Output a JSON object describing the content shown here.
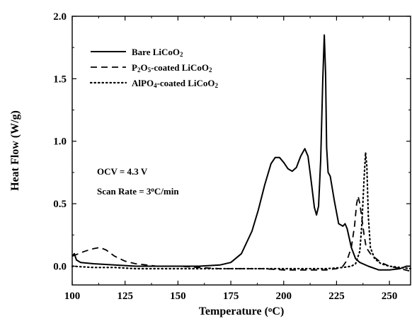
{
  "chart_data": {
    "type": "line",
    "xlabel": "Temperature (°C)",
    "xlabel_parts": {
      "pre": "Temperature (",
      "sup": "o",
      "post": "C)"
    },
    "ylabel": "Heat Flow (W/g)",
    "xlim": [
      100,
      260
    ],
    "ylim": [
      -0.15,
      2.0
    ],
    "xticks": [
      100,
      125,
      150,
      175,
      200,
      225,
      250
    ],
    "xtick_labels": [
      "100",
      "125",
      "150",
      "175",
      "200",
      "225",
      "250"
    ],
    "yticks": [
      0.0,
      0.5,
      1.0,
      1.5,
      2.0
    ],
    "ytick_labels": [
      "0.0",
      "0.5",
      "1.0",
      "1.5",
      "2.0"
    ],
    "grid": false,
    "legend_position": "top-left",
    "series": [
      {
        "name": "Bare LiCoO2",
        "label_parts": [
          {
            "t": "Bare LiCoO"
          },
          {
            "t": "2",
            "sub": true
          }
        ],
        "style": "solid",
        "color": "#000000",
        "points": [
          [
            100,
            0.08
          ],
          [
            101,
            0.1
          ],
          [
            102,
            0.05
          ],
          [
            104,
            0.03
          ],
          [
            110,
            0.02
          ],
          [
            120,
            0.01
          ],
          [
            130,
            0.0
          ],
          [
            140,
            0.0
          ],
          [
            150,
            0.0
          ],
          [
            160,
            0.0
          ],
          [
            170,
            0.01
          ],
          [
            175,
            0.03
          ],
          [
            180,
            0.1
          ],
          [
            185,
            0.28
          ],
          [
            188,
            0.45
          ],
          [
            191,
            0.65
          ],
          [
            194,
            0.82
          ],
          [
            196,
            0.87
          ],
          [
            198,
            0.87
          ],
          [
            200,
            0.83
          ],
          [
            202,
            0.78
          ],
          [
            204,
            0.76
          ],
          [
            206,
            0.79
          ],
          [
            208,
            0.88
          ],
          [
            210,
            0.94
          ],
          [
            211.5,
            0.88
          ],
          [
            213,
            0.68
          ],
          [
            214.5,
            0.47
          ],
          [
            215.5,
            0.41
          ],
          [
            216.5,
            0.48
          ],
          [
            217.5,
            0.85
          ],
          [
            218.5,
            1.5
          ],
          [
            219.2,
            1.85
          ],
          [
            219.8,
            1.55
          ],
          [
            220.3,
            0.95
          ],
          [
            221,
            0.75
          ],
          [
            222,
            0.72
          ],
          [
            224,
            0.52
          ],
          [
            226,
            0.34
          ],
          [
            228,
            0.32
          ],
          [
            229,
            0.34
          ],
          [
            230,
            0.3
          ],
          [
            232,
            0.15
          ],
          [
            234,
            0.06
          ],
          [
            236,
            0.03
          ],
          [
            240,
            0.0
          ],
          [
            245,
            -0.03
          ],
          [
            250,
            -0.03
          ],
          [
            255,
            -0.02
          ],
          [
            258,
            0.0
          ],
          [
            260,
            0.0
          ]
        ]
      },
      {
        "name": "P2O5-coated LiCoO2",
        "label_parts": [
          {
            "t": "P"
          },
          {
            "t": "2",
            "sub": true
          },
          {
            "t": "O"
          },
          {
            "t": "5",
            "sub": true
          },
          {
            "t": "-coated LiCoO"
          },
          {
            "t": "2",
            "sub": true
          }
        ],
        "style": "dashed",
        "color": "#000000",
        "points": [
          [
            100,
            0.08
          ],
          [
            103,
            0.1
          ],
          [
            106,
            0.12
          ],
          [
            110,
            0.14
          ],
          [
            113,
            0.15
          ],
          [
            116,
            0.13
          ],
          [
            120,
            0.08
          ],
          [
            125,
            0.04
          ],
          [
            130,
            0.02
          ],
          [
            140,
            0.0
          ],
          [
            150,
            0.0
          ],
          [
            160,
            -0.01
          ],
          [
            170,
            -0.02
          ],
          [
            180,
            -0.02
          ],
          [
            190,
            -0.02
          ],
          [
            200,
            -0.03
          ],
          [
            210,
            -0.03
          ],
          [
            220,
            -0.03
          ],
          [
            225,
            -0.02
          ],
          [
            228,
            0.0
          ],
          [
            230,
            0.05
          ],
          [
            232,
            0.15
          ],
          [
            233.5,
            0.32
          ],
          [
            234.5,
            0.5
          ],
          [
            235.2,
            0.56
          ],
          [
            236,
            0.5
          ],
          [
            237,
            0.38
          ],
          [
            238,
            0.25
          ],
          [
            239,
            0.15
          ],
          [
            241,
            0.1
          ],
          [
            243,
            0.07
          ],
          [
            246,
            0.03
          ],
          [
            250,
            0.0
          ],
          [
            255,
            -0.02
          ],
          [
            260,
            -0.04
          ]
        ]
      },
      {
        "name": "AlPO4-coated LiCoO2",
        "label_parts": [
          {
            "t": "AlPO"
          },
          {
            "t": "4",
            "sub": true
          },
          {
            "t": "-coated LiCoO"
          },
          {
            "t": "2",
            "sub": true
          }
        ],
        "style": "dotted",
        "color": "#000000",
        "points": [
          [
            100,
            0.0
          ],
          [
            110,
            -0.01
          ],
          [
            120,
            -0.01
          ],
          [
            130,
            -0.02
          ],
          [
            140,
            -0.02
          ],
          [
            150,
            -0.02
          ],
          [
            160,
            -0.02
          ],
          [
            170,
            -0.02
          ],
          [
            180,
            -0.02
          ],
          [
            190,
            -0.02
          ],
          [
            200,
            -0.02
          ],
          [
            210,
            -0.02
          ],
          [
            220,
            -0.02
          ],
          [
            228,
            -0.01
          ],
          [
            232,
            0.0
          ],
          [
            234,
            0.02
          ],
          [
            236,
            0.12
          ],
          [
            237,
            0.35
          ],
          [
            238,
            0.7
          ],
          [
            238.7,
            0.91
          ],
          [
            239.3,
            0.8
          ],
          [
            240,
            0.4
          ],
          [
            241,
            0.15
          ],
          [
            243,
            0.06
          ],
          [
            246,
            0.02
          ],
          [
            250,
            0.0
          ],
          [
            255,
            -0.01
          ],
          [
            260,
            -0.02
          ]
        ]
      }
    ],
    "annotations": [
      {
        "id": "ocv",
        "parts": [
          {
            "t": "OCV = 4.3 V"
          }
        ]
      },
      {
        "id": "scan_rate",
        "parts": [
          {
            "t": "Scan Rate = 3"
          },
          {
            "t": "o",
            "sup": true
          },
          {
            "t": "C/min"
          }
        ]
      }
    ]
  }
}
